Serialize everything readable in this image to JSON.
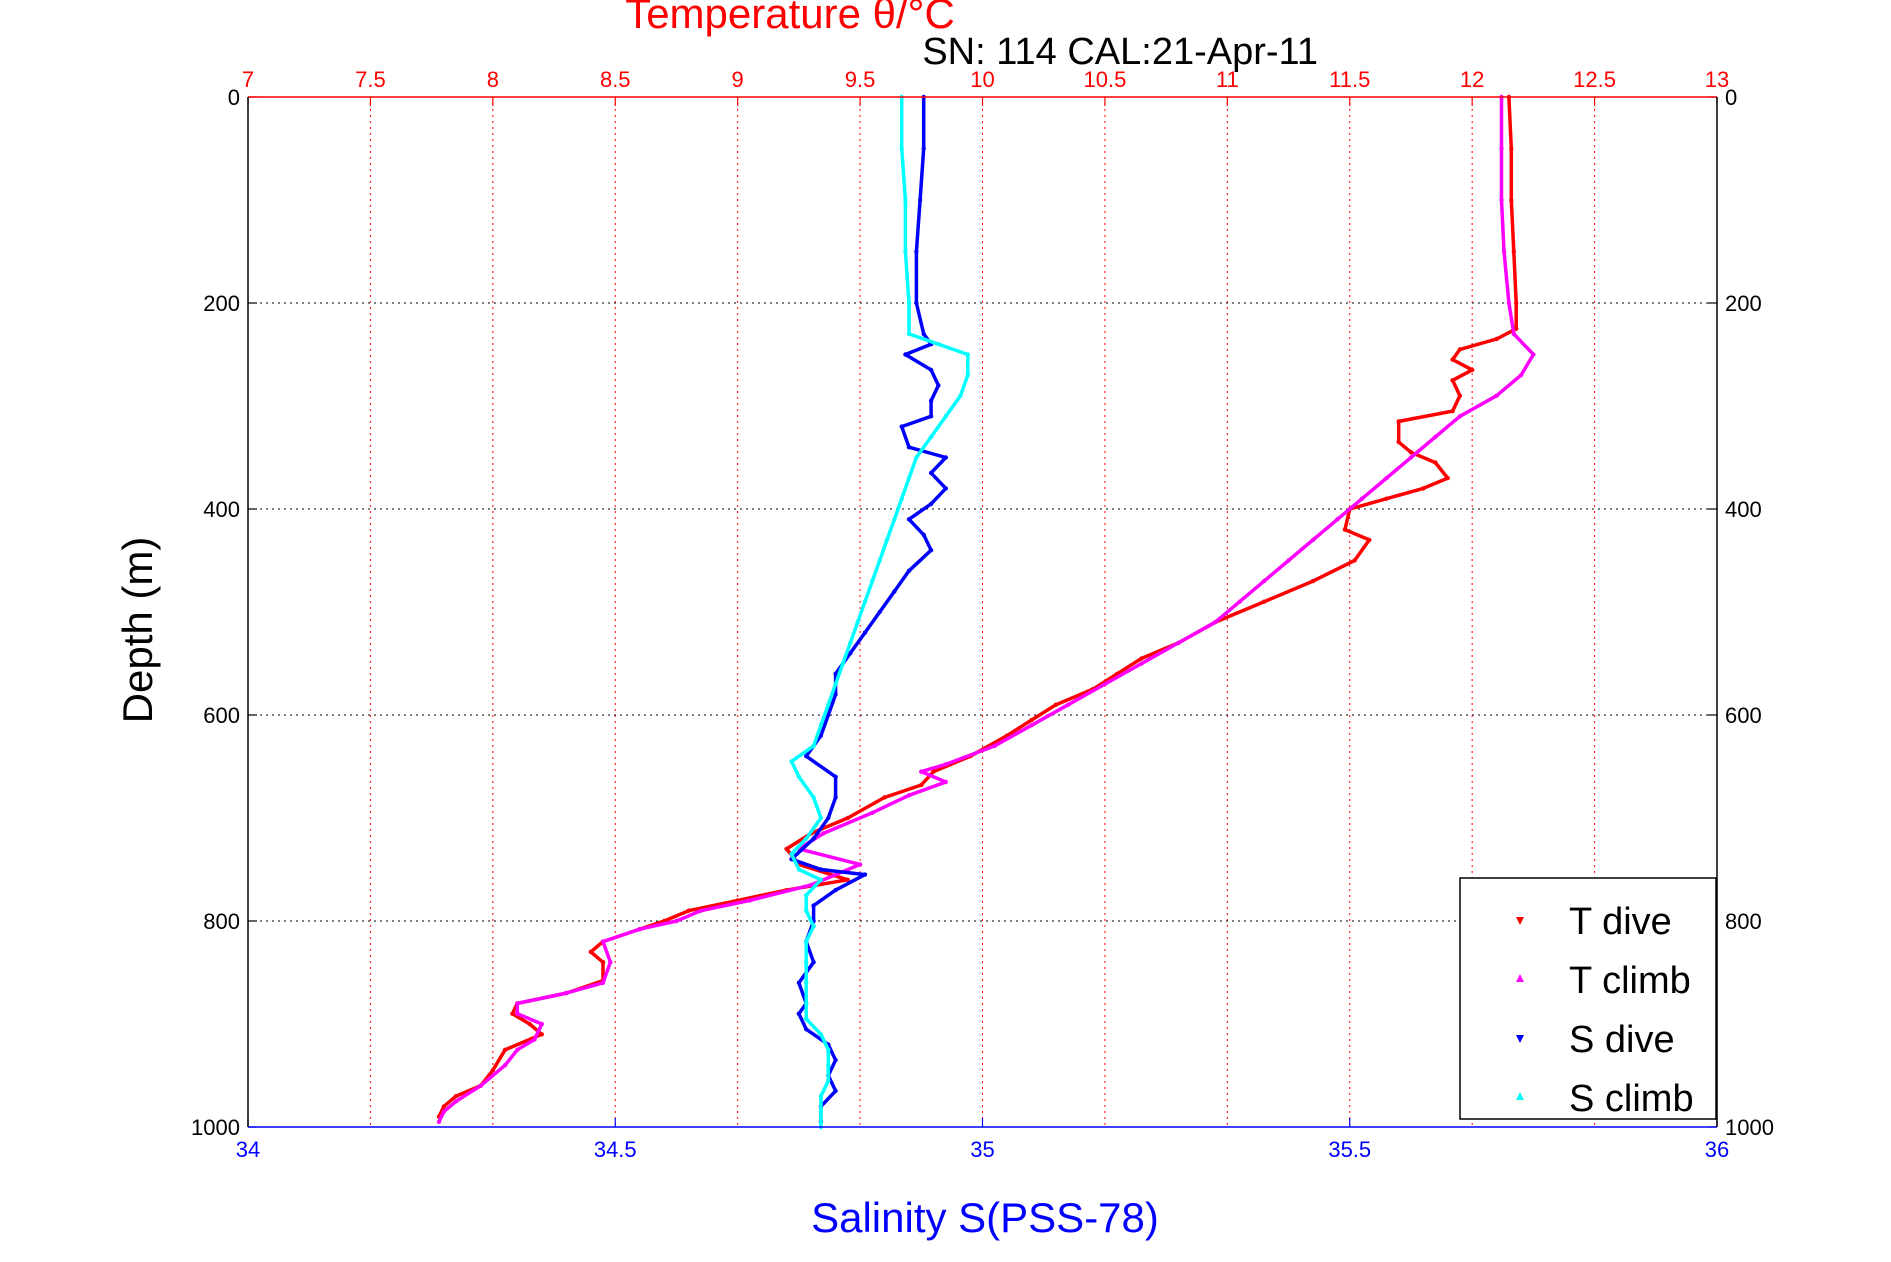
{
  "chart_data": {
    "type": "scatter",
    "top_title": "Temperature θ/°C",
    "subtitle": "SN: 114  CAL:21-Apr-11",
    "ylabel": "Depth (m)",
    "xlabel": "Salinity S(PSS-78)",
    "colors": {
      "temperature_axis": "#ff0000",
      "salinity_axis": "#0000ff",
      "depth_axis": "#000000"
    },
    "depth_axis": {
      "range": [
        0,
        1000
      ],
      "reversed": true,
      "ticks": [
        0,
        200,
        400,
        600,
        800,
        1000
      ],
      "grid": true
    },
    "temperature_axis": {
      "range": [
        7,
        13
      ],
      "position": "top",
      "ticks": [
        "7",
        "7.5",
        "8",
        "8.5",
        "9",
        "9.5",
        "10",
        "10.5",
        "11",
        "11.5",
        "12",
        "12.5",
        "13"
      ],
      "grid": true
    },
    "salinity_axis": {
      "range": [
        34,
        36
      ],
      "position": "bottom",
      "ticks": [
        "34",
        "34.5",
        "35",
        "35.5",
        "36"
      ]
    },
    "legend_position": "bottom-right",
    "series": [
      {
        "name": "T dive",
        "axis": "temperature",
        "color": "#ff0000",
        "marker": "down-triangle",
        "points": [
          [
            12.15,
            0
          ],
          [
            12.16,
            50
          ],
          [
            12.16,
            100
          ],
          [
            12.17,
            150
          ],
          [
            12.18,
            200
          ],
          [
            12.18,
            225
          ],
          [
            12.1,
            235
          ],
          [
            11.95,
            245
          ],
          [
            11.92,
            255
          ],
          [
            12.0,
            265
          ],
          [
            11.92,
            275
          ],
          [
            11.95,
            290
          ],
          [
            11.92,
            305
          ],
          [
            11.7,
            315
          ],
          [
            11.7,
            335
          ],
          [
            11.75,
            345
          ],
          [
            11.85,
            355
          ],
          [
            11.9,
            370
          ],
          [
            11.8,
            380
          ],
          [
            11.65,
            390
          ],
          [
            11.5,
            400
          ],
          [
            11.48,
            420
          ],
          [
            11.58,
            430
          ],
          [
            11.52,
            450
          ],
          [
            11.35,
            470
          ],
          [
            11.15,
            490
          ],
          [
            10.95,
            510
          ],
          [
            10.8,
            530
          ],
          [
            10.65,
            545
          ],
          [
            10.55,
            560
          ],
          [
            10.45,
            575
          ],
          [
            10.3,
            590
          ],
          [
            10.2,
            605
          ],
          [
            10.1,
            620
          ],
          [
            9.95,
            640
          ],
          [
            9.8,
            655
          ],
          [
            9.75,
            668
          ],
          [
            9.6,
            680
          ],
          [
            9.45,
            700
          ],
          [
            9.3,
            715
          ],
          [
            9.2,
            730
          ],
          [
            9.25,
            745
          ],
          [
            9.45,
            760
          ],
          [
            9.2,
            770
          ],
          [
            9.0,
            780
          ],
          [
            8.8,
            790
          ],
          [
            8.7,
            800
          ],
          [
            8.6,
            808
          ],
          [
            8.45,
            820
          ],
          [
            8.4,
            830
          ],
          [
            8.45,
            840
          ],
          [
            8.45,
            858
          ],
          [
            8.3,
            870
          ],
          [
            8.1,
            880
          ],
          [
            8.08,
            890
          ],
          [
            8.15,
            900
          ],
          [
            8.2,
            910
          ],
          [
            8.05,
            925
          ],
          [
            8.0,
            945
          ],
          [
            7.95,
            960
          ],
          [
            7.85,
            970
          ],
          [
            7.8,
            980
          ],
          [
            7.78,
            990
          ]
        ]
      },
      {
        "name": "T climb",
        "axis": "temperature",
        "color": "#ff00ff",
        "marker": "up-triangle",
        "points": [
          [
            12.12,
            0
          ],
          [
            12.12,
            50
          ],
          [
            12.12,
            100
          ],
          [
            12.13,
            150
          ],
          [
            12.15,
            200
          ],
          [
            12.17,
            230
          ],
          [
            12.25,
            250
          ],
          [
            12.2,
            270
          ],
          [
            12.1,
            290
          ],
          [
            11.95,
            310
          ],
          [
            11.85,
            330
          ],
          [
            11.75,
            350
          ],
          [
            11.65,
            370
          ],
          [
            11.55,
            390
          ],
          [
            11.45,
            410
          ],
          [
            11.35,
            430
          ],
          [
            11.25,
            450
          ],
          [
            11.15,
            470
          ],
          [
            11.05,
            490
          ],
          [
            10.95,
            510
          ],
          [
            10.8,
            530
          ],
          [
            10.65,
            550
          ],
          [
            10.5,
            570
          ],
          [
            10.35,
            590
          ],
          [
            10.2,
            610
          ],
          [
            10.05,
            630
          ],
          [
            9.85,
            648
          ],
          [
            9.75,
            655
          ],
          [
            9.85,
            665
          ],
          [
            9.7,
            678
          ],
          [
            9.55,
            695
          ],
          [
            9.35,
            715
          ],
          [
            9.25,
            730
          ],
          [
            9.5,
            745
          ],
          [
            9.3,
            765
          ],
          [
            9.05,
            780
          ],
          [
            8.85,
            790
          ],
          [
            8.75,
            800
          ],
          [
            8.6,
            808
          ],
          [
            8.45,
            820
          ],
          [
            8.48,
            840
          ],
          [
            8.45,
            860
          ],
          [
            8.3,
            870
          ],
          [
            8.1,
            880
          ],
          [
            8.1,
            890
          ],
          [
            8.2,
            900
          ],
          [
            8.17,
            915
          ],
          [
            8.1,
            925
          ],
          [
            8.05,
            940
          ],
          [
            7.95,
            960
          ],
          [
            7.85,
            975
          ],
          [
            7.8,
            985
          ],
          [
            7.78,
            995
          ]
        ]
      },
      {
        "name": "S dive",
        "axis": "salinity",
        "color": "#0000ff",
        "marker": "down-triangle",
        "points": [
          [
            34.92,
            0
          ],
          [
            34.92,
            50
          ],
          [
            34.915,
            100
          ],
          [
            34.91,
            150
          ],
          [
            34.91,
            200
          ],
          [
            34.92,
            230
          ],
          [
            34.93,
            240
          ],
          [
            34.895,
            250
          ],
          [
            34.93,
            265
          ],
          [
            34.94,
            280
          ],
          [
            34.93,
            295
          ],
          [
            34.93,
            310
          ],
          [
            34.89,
            320
          ],
          [
            34.9,
            340
          ],
          [
            34.95,
            350
          ],
          [
            34.93,
            365
          ],
          [
            34.95,
            380
          ],
          [
            34.93,
            395
          ],
          [
            34.9,
            410
          ],
          [
            34.92,
            425
          ],
          [
            34.93,
            440
          ],
          [
            34.9,
            460
          ],
          [
            34.88,
            480
          ],
          [
            34.86,
            500
          ],
          [
            34.84,
            520
          ],
          [
            34.82,
            540
          ],
          [
            34.8,
            560
          ],
          [
            34.8,
            580
          ],
          [
            34.79,
            600
          ],
          [
            34.78,
            620
          ],
          [
            34.76,
            640
          ],
          [
            34.8,
            660
          ],
          [
            34.8,
            680
          ],
          [
            34.79,
            700
          ],
          [
            34.77,
            720
          ],
          [
            34.74,
            740
          ],
          [
            34.78,
            750
          ],
          [
            34.84,
            755
          ],
          [
            34.8,
            770
          ],
          [
            34.77,
            785
          ],
          [
            34.77,
            800
          ],
          [
            34.76,
            820
          ],
          [
            34.77,
            840
          ],
          [
            34.75,
            860
          ],
          [
            34.76,
            880
          ],
          [
            34.75,
            890
          ],
          [
            34.76,
            905
          ],
          [
            34.79,
            920
          ],
          [
            34.8,
            935
          ],
          [
            34.79,
            950
          ],
          [
            34.8,
            965
          ],
          [
            34.78,
            980
          ],
          [
            34.78,
            995
          ]
        ]
      },
      {
        "name": "S climb",
        "axis": "salinity",
        "color": "#00ffff",
        "marker": "up-triangle",
        "points": [
          [
            34.89,
            0
          ],
          [
            34.89,
            50
          ],
          [
            34.895,
            100
          ],
          [
            34.895,
            150
          ],
          [
            34.9,
            200
          ],
          [
            34.9,
            230
          ],
          [
            34.94,
            240
          ],
          [
            34.98,
            250
          ],
          [
            34.98,
            270
          ],
          [
            34.97,
            290
          ],
          [
            34.95,
            310
          ],
          [
            34.93,
            330
          ],
          [
            34.91,
            350
          ],
          [
            34.9,
            370
          ],
          [
            34.89,
            390
          ],
          [
            34.88,
            410
          ],
          [
            34.87,
            430
          ],
          [
            34.86,
            450
          ],
          [
            34.85,
            470
          ],
          [
            34.84,
            490
          ],
          [
            34.83,
            510
          ],
          [
            34.82,
            530
          ],
          [
            34.81,
            550
          ],
          [
            34.8,
            570
          ],
          [
            34.79,
            590
          ],
          [
            34.78,
            610
          ],
          [
            34.77,
            630
          ],
          [
            34.74,
            645
          ],
          [
            34.75,
            660
          ],
          [
            34.77,
            680
          ],
          [
            34.78,
            700
          ],
          [
            34.76,
            720
          ],
          [
            34.74,
            735
          ],
          [
            34.75,
            750
          ],
          [
            34.78,
            760
          ],
          [
            34.76,
            775
          ],
          [
            34.76,
            790
          ],
          [
            34.77,
            805
          ],
          [
            34.76,
            820
          ],
          [
            34.76,
            840
          ],
          [
            34.76,
            860
          ],
          [
            34.76,
            880
          ],
          [
            34.76,
            895
          ],
          [
            34.78,
            910
          ],
          [
            34.79,
            925
          ],
          [
            34.79,
            940
          ],
          [
            34.79,
            955
          ],
          [
            34.78,
            970
          ],
          [
            34.78,
            985
          ],
          [
            34.78,
            1000
          ]
        ]
      }
    ]
  }
}
